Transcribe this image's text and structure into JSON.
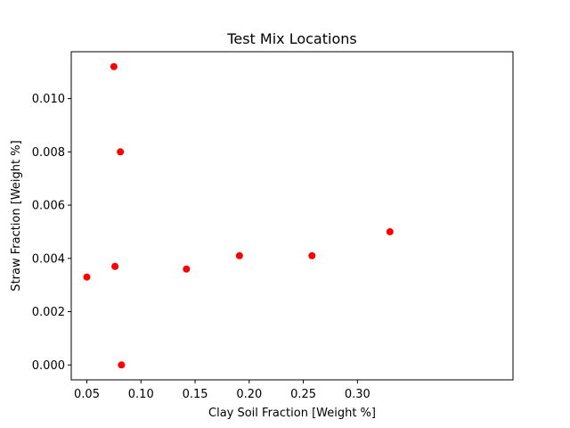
{
  "chart_data": {
    "type": "scatter",
    "title": "Test Mix Locations",
    "xlabel": "Clay Soil Fraction [Weight %]",
    "ylabel": "Straw Fraction [Weight %]",
    "xlim": [
      0.0356,
      0.4437
    ],
    "ylim": [
      -0.00056,
      0.01176
    ],
    "xticks": [
      0.05,
      0.1,
      0.15,
      0.2,
      0.25,
      0.3
    ],
    "xtick_labels": [
      "0.05",
      "0.10",
      "0.15",
      "0.20",
      "0.25",
      "0.30"
    ],
    "yticks": [
      0.0,
      0.002,
      0.004,
      0.006,
      0.008,
      0.01
    ],
    "ytick_labels": [
      "0.000",
      "0.002",
      "0.004",
      "0.006",
      "0.008",
      "0.010"
    ],
    "grid": false,
    "marker_color": "#ff0000",
    "points": [
      {
        "x": 0.05,
        "y": 0.0033
      },
      {
        "x": 0.075,
        "y": 0.0112
      },
      {
        "x": 0.076,
        "y": 0.0037
      },
      {
        "x": 0.081,
        "y": 0.008
      },
      {
        "x": 0.082,
        "y": 0.0
      },
      {
        "x": 0.142,
        "y": 0.0036
      },
      {
        "x": 0.191,
        "y": 0.0041
      },
      {
        "x": 0.258,
        "y": 0.0041
      },
      {
        "x": 0.33,
        "y": 0.005
      }
    ]
  }
}
